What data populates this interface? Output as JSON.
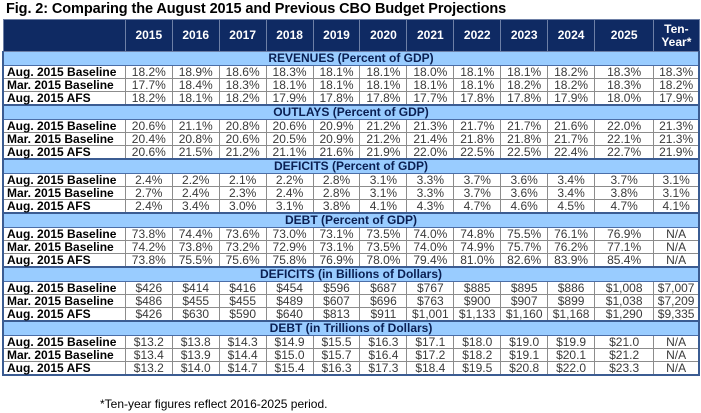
{
  "title": "Fig. 2: Comparing the August 2015 and Previous CBO Budget Projections",
  "columns": [
    "",
    "2015",
    "2016",
    "2017",
    "2018",
    "2019",
    "2020",
    "2021",
    "2022",
    "2023",
    "2024",
    "2025",
    "Ten-Year*"
  ],
  "sections": [
    {
      "heading": "REVENUES (Percent of GDP)",
      "rows": [
        {
          "label": "Aug. 2015 Baseline",
          "values": [
            "18.2%",
            "18.9%",
            "18.6%",
            "18.3%",
            "18.1%",
            "18.1%",
            "18.0%",
            "18.1%",
            "18.1%",
            "18.2%",
            "18.3%",
            "18.3%"
          ]
        },
        {
          "label": "Mar. 2015 Baseline",
          "values": [
            "17.7%",
            "18.4%",
            "18.3%",
            "18.1%",
            "18.1%",
            "18.1%",
            "18.1%",
            "18.1%",
            "18.2%",
            "18.2%",
            "18.3%",
            "18.2%"
          ]
        },
        {
          "label": "Aug. 2015 AFS",
          "values": [
            "18.2%",
            "18.1%",
            "18.2%",
            "17.9%",
            "17.8%",
            "17.8%",
            "17.7%",
            "17.8%",
            "17.8%",
            "17.9%",
            "18.0%",
            "17.9%"
          ]
        }
      ]
    },
    {
      "heading": "OUTLAYS (Percent of GDP)",
      "rows": [
        {
          "label": "Aug. 2015 Baseline",
          "values": [
            "20.6%",
            "21.1%",
            "20.8%",
            "20.6%",
            "20.9%",
            "21.2%",
            "21.3%",
            "21.7%",
            "21.7%",
            "21.6%",
            "22.0%",
            "21.3%"
          ]
        },
        {
          "label": "Mar. 2015 Baseline",
          "values": [
            "20.4%",
            "20.8%",
            "20.6%",
            "20.5%",
            "20.9%",
            "21.2%",
            "21.4%",
            "21.8%",
            "21.8%",
            "21.7%",
            "22.1%",
            "21.3%"
          ]
        },
        {
          "label": "Aug. 2015 AFS",
          "values": [
            "20.6%",
            "21.5%",
            "21.2%",
            "21.1%",
            "21.6%",
            "21.9%",
            "22.0%",
            "22.5%",
            "22.5%",
            "22.4%",
            "22.7%",
            "21.9%"
          ]
        }
      ]
    },
    {
      "heading": "DEFICITS (Percent of GDP)",
      "rows": [
        {
          "label": "Aug. 2015 Baseline",
          "values": [
            "2.4%",
            "2.2%",
            "2.1%",
            "2.2%",
            "2.8%",
            "3.1%",
            "3.3%",
            "3.7%",
            "3.6%",
            "3.4%",
            "3.7%",
            "3.1%"
          ]
        },
        {
          "label": "Mar. 2015 Baseline",
          "values": [
            "2.7%",
            "2.4%",
            "2.3%",
            "2.4%",
            "2.8%",
            "3.1%",
            "3.3%",
            "3.7%",
            "3.6%",
            "3.4%",
            "3.8%",
            "3.1%"
          ]
        },
        {
          "label": "Aug. 2015 AFS",
          "values": [
            "2.4%",
            "3.4%",
            "3.0%",
            "3.1%",
            "3.8%",
            "4.1%",
            "4.3%",
            "4.7%",
            "4.6%",
            "4.5%",
            "4.7%",
            "4.1%"
          ]
        }
      ]
    },
    {
      "heading": "DEBT (Percent of GDP)",
      "rows": [
        {
          "label": "Aug. 2015 Baseline",
          "values": [
            "73.8%",
            "74.4%",
            "73.6%",
            "73.0%",
            "73.1%",
            "73.5%",
            "74.0%",
            "74.8%",
            "75.5%",
            "76.1%",
            "76.9%",
            "N/A"
          ]
        },
        {
          "label": "Mar. 2015 Baseline",
          "values": [
            "74.2%",
            "73.8%",
            "73.2%",
            "72.9%",
            "73.1%",
            "73.5%",
            "74.0%",
            "74.9%",
            "75.7%",
            "76.2%",
            "77.1%",
            "N/A"
          ]
        },
        {
          "label": "Aug. 2015 AFS",
          "values": [
            "73.8%",
            "75.5%",
            "75.6%",
            "75.8%",
            "76.9%",
            "78.0%",
            "79.4%",
            "81.0%",
            "82.6%",
            "83.9%",
            "85.4%",
            "N/A"
          ]
        }
      ]
    },
    {
      "heading": "DEFICITS (in Billions of Dollars)",
      "rows": [
        {
          "label": "Aug. 2015 Baseline",
          "values": [
            "$426",
            "$414",
            "$416",
            "$454",
            "$596",
            "$687",
            "$767",
            "$885",
            "$895",
            "$886",
            "$1,008",
            "$7,007"
          ]
        },
        {
          "label": "Mar. 2015 Baseline",
          "values": [
            "$486",
            "$455",
            "$455",
            "$489",
            "$607",
            "$696",
            "$763",
            "$900",
            "$907",
            "$899",
            "$1,038",
            "$7,209"
          ]
        },
        {
          "label": "Aug. 2015 AFS",
          "values": [
            "$426",
            "$630",
            "$590",
            "$640",
            "$813",
            "$911",
            "$1,001",
            "$1,133",
            "$1,160",
            "$1,168",
            "$1,290",
            "$9,335"
          ]
        }
      ]
    },
    {
      "heading": "DEBT (in Trillions of Dollars)",
      "rows": [
        {
          "label": "Aug. 2015 Baseline",
          "values": [
            "$13.2",
            "$13.8",
            "$14.3",
            "$14.9",
            "$15.5",
            "$16.3",
            "$17.1",
            "$18.0",
            "$19.0",
            "$19.9",
            "$21.0",
            "N/A"
          ]
        },
        {
          "label": "Mar. 2015 Baseline",
          "values": [
            "$13.4",
            "$13.9",
            "$14.4",
            "$15.0",
            "$15.7",
            "$16.4",
            "$17.2",
            "$18.2",
            "$19.1",
            "$20.1",
            "$21.2",
            "N/A"
          ]
        },
        {
          "label": "Aug. 2015 AFS",
          "values": [
            "$13.2",
            "$14.0",
            "$14.7",
            "$15.4",
            "$16.3",
            "$17.3",
            "$18.4",
            "$19.5",
            "$20.8",
            "$22.0",
            "$23.3",
            "N/A"
          ]
        }
      ]
    }
  ],
  "footnote": "*Ten-year figures reflect 2016-2025 period.",
  "colors": {
    "header_bg": "#0f2a63",
    "header_text": "#ffffff",
    "section_bg": "#99ccff",
    "section_text": "#0a1f52",
    "border_accent": "#3b5c92"
  }
}
